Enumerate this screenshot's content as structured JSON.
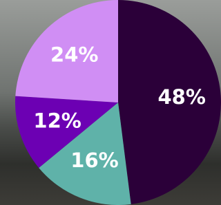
{
  "chart_data": {
    "type": "pie",
    "values": [
      48,
      16,
      12,
      24
    ],
    "value_labels": [
      "48%",
      "16%",
      "12%",
      "24%"
    ],
    "colors": [
      "#2b0039",
      "#5fb2a9",
      "#6c00b3",
      "#d08ef4"
    ]
  }
}
